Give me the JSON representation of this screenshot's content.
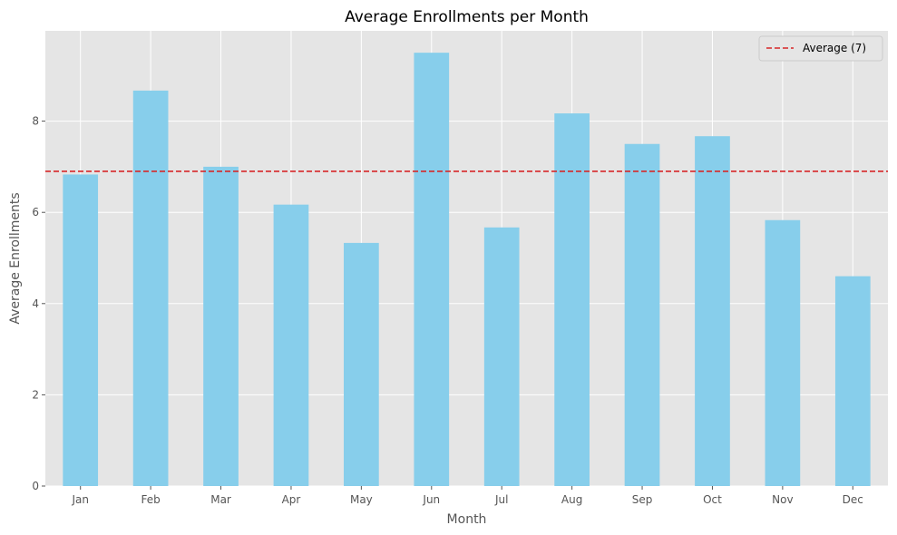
{
  "chart_data": {
    "type": "bar",
    "title": "Average Enrollments per Month",
    "xlabel": "Month",
    "ylabel": "Average Enrollments",
    "categories": [
      "Jan",
      "Feb",
      "Mar",
      "Apr",
      "May",
      "Jun",
      "Jul",
      "Aug",
      "Sep",
      "Oct",
      "Nov",
      "Dec"
    ],
    "values": [
      6.83,
      8.67,
      7.0,
      6.17,
      5.33,
      9.5,
      5.67,
      8.17,
      7.5,
      7.67,
      5.83,
      4.6
    ],
    "ylim": [
      0,
      9.98
    ],
    "yticks": [
      0,
      2,
      4,
      6,
      8
    ],
    "ytick_labels": [
      "0",
      "2",
      "4",
      "6",
      "8"
    ],
    "reference_line": {
      "label": "Average (7)",
      "value": 6.9,
      "style": "dashed"
    },
    "legend": {
      "entries": [
        "Average (7)"
      ],
      "position": "top-right"
    },
    "grid": true,
    "colors": {
      "bar": "#87ceeb",
      "average_line": "#d62728",
      "plot_background": "#e5e5e5",
      "grid": "#ffffff",
      "figure_background": "#ffffff"
    }
  }
}
